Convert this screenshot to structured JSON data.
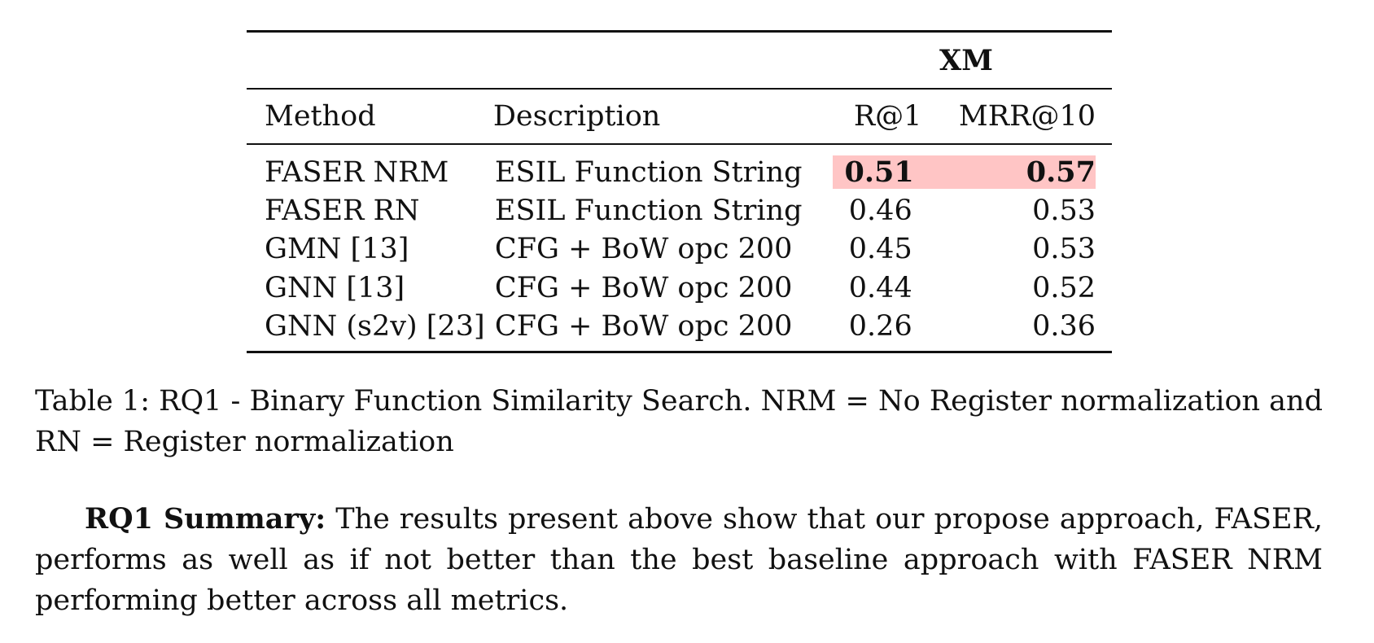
{
  "table": {
    "group_header": "XM",
    "columns": [
      "Method",
      "Description",
      "R@1",
      "MRR@10"
    ],
    "rows": [
      {
        "method": "FASER NRM",
        "description": "ESIL Function String",
        "r1": "0.51",
        "mrr10": "0.57",
        "highlight": true
      },
      {
        "method": "FASER RN",
        "description": "ESIL Function String",
        "r1": "0.46",
        "mrr10": "0.53"
      },
      {
        "method": "GMN [13]",
        "description": "CFG + BoW opc 200",
        "r1": "0.45",
        "mrr10": "0.53"
      },
      {
        "method": "GNN [13]",
        "description": "CFG + BoW opc 200",
        "r1": "0.44",
        "mrr10": "0.52"
      },
      {
        "method": "GNN (s2v) [23]",
        "description": "CFG + BoW opc 200",
        "r1": "0.26",
        "mrr10": "0.36"
      }
    ],
    "highlight_color": "#ffc5c5"
  },
  "caption": "Table 1: RQ1 - Binary Function Similarity Search. NRM = No Register normalization and RN = Register normalization",
  "summary": {
    "lead": "RQ1 Summary:",
    "text": " The results present above show that our propose approach, FASER, performs as well as if not better than the best baseline approach with FASER NRM performing better across all metrics."
  }
}
